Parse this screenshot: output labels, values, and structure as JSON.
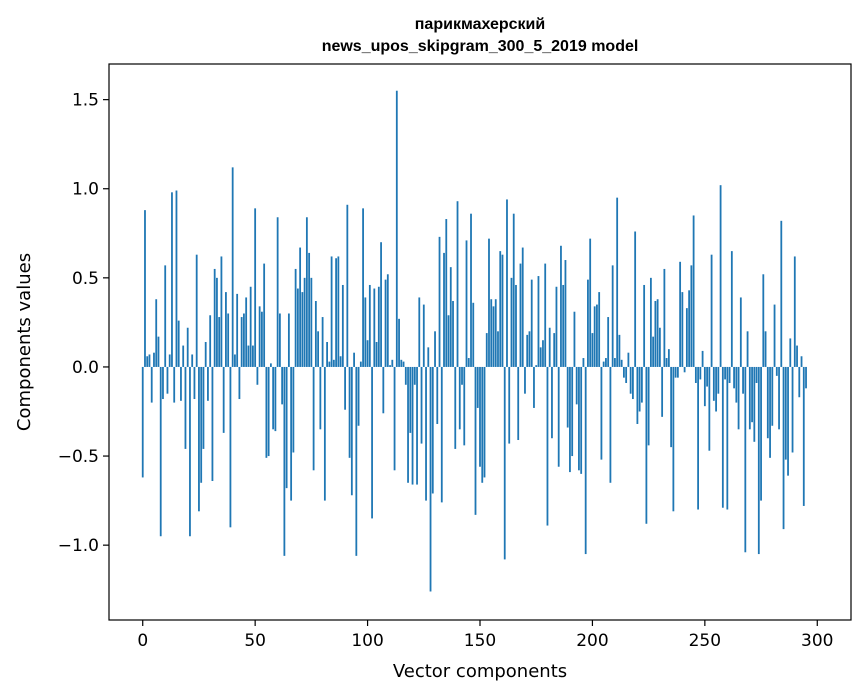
{
  "chart_data": {
    "type": "bar",
    "title": "парикмахерский",
    "subtitle": "news_upos_skipgram_300_5_2019 model",
    "xlabel": "Vector components",
    "ylabel": "Components values",
    "xlim": [
      -15,
      315
    ],
    "ylim": [
      -1.42,
      1.7
    ],
    "xticks": [
      0,
      50,
      100,
      150,
      200,
      250,
      300
    ],
    "yticks": [
      -1.0,
      -0.5,
      0.0,
      0.5,
      1.0,
      1.5
    ],
    "ytick_labels": [
      "−1.0",
      "−0.5",
      "0.0",
      "0.5",
      "1.0",
      "1.5"
    ],
    "bar_color": "#1f77b4",
    "values": [
      -0.62,
      0.88,
      0.06,
      0.07,
      -0.2,
      0.08,
      0.38,
      0.17,
      -0.95,
      -0.18,
      0.57,
      -0.15,
      0.07,
      0.98,
      -0.2,
      0.99,
      0.26,
      -0.19,
      0.12,
      -0.46,
      0.22,
      -0.95,
      0.07,
      -0.18,
      0.63,
      -0.81,
      -0.65,
      -0.46,
      0.14,
      -0.19,
      0.29,
      -0.64,
      0.55,
      0.5,
      0.28,
      0.62,
      -0.37,
      0.42,
      0.3,
      -0.9,
      1.12,
      0.07,
      0.41,
      -0.18,
      0.28,
      0.3,
      0.39,
      0.12,
      0.45,
      0.12,
      0.89,
      -0.1,
      0.34,
      0.31,
      0.58,
      -0.51,
      -0.5,
      0.02,
      -0.35,
      -0.36,
      0.84,
      0.3,
      -0.21,
      -1.06,
      -0.68,
      0.3,
      -0.75,
      -0.48,
      0.55,
      0.44,
      0.67,
      0.42,
      0.5,
      0.84,
      0.64,
      0.5,
      -0.58,
      0.37,
      0.2,
      -0.35,
      0.28,
      -0.75,
      0.14,
      0.03,
      0.62,
      0.04,
      0.61,
      0.62,
      0.06,
      0.46,
      -0.24,
      0.91,
      -0.51,
      -0.72,
      0.08,
      -1.06,
      -0.33,
      0.03,
      0.89,
      0.39,
      0.15,
      0.46,
      -0.85,
      0.44,
      0.14,
      0.45,
      0.7,
      -0.26,
      0.49,
      0.52,
      0.01,
      0.04,
      -0.58,
      1.55,
      0.27,
      0.04,
      0.03,
      -0.1,
      -0.65,
      -0.37,
      -0.66,
      -0.1,
      -0.66,
      0.39,
      -0.43,
      0.35,
      -0.75,
      0.11,
      -1.26,
      -0.71,
      0.2,
      -0.32,
      0.73,
      -0.76,
      0.64,
      0.83,
      0.29,
      0.56,
      0.37,
      -0.46,
      0.93,
      -0.35,
      -0.1,
      -0.44,
      0.71,
      0.05,
      0.86,
      0.36,
      -0.83,
      -0.23,
      -0.56,
      -0.65,
      -0.62,
      0.19,
      0.72,
      0.38,
      0.34,
      0.38,
      0.2,
      0.65,
      0.63,
      -1.08,
      0.94,
      -0.43,
      0.5,
      0.86,
      0.46,
      -0.41,
      0.58,
      0.67,
      -0.15,
      0.18,
      0.2,
      0.49,
      -0.23,
      0.01,
      0.51,
      0.11,
      0.15,
      0.58,
      -0.89,
      0.22,
      -0.4,
      0.19,
      0.45,
      -0.56,
      0.68,
      0.46,
      0.6,
      -0.34,
      -0.59,
      -0.5,
      0.31,
      -0.21,
      -0.58,
      -0.6,
      0.05,
      -1.05,
      0.49,
      0.72,
      0.19,
      0.34,
      0.35,
      0.42,
      -0.52,
      0.03,
      0.05,
      0.28,
      -0.65,
      0.57,
      0.05,
      0.95,
      0.18,
      0.04,
      -0.06,
      -0.09,
      0.08,
      -0.15,
      -0.18,
      0.76,
      -0.32,
      -0.25,
      -0.2,
      0.46,
      -0.88,
      -0.44,
      0.5,
      0.17,
      0.37,
      0.38,
      0.22,
      -0.28,
      0.55,
      0.05,
      0.1,
      -0.45,
      -0.81,
      -0.06,
      -0.06,
      0.59,
      0.42,
      -0.03,
      0.33,
      0.43,
      0.57,
      0.85,
      -0.09,
      -0.8,
      -0.07,
      0.09,
      -0.22,
      -0.11,
      -0.47,
      0.63,
      -0.19,
      -0.25,
      -0.15,
      1.02,
      -0.79,
      -0.07,
      -0.8,
      -0.09,
      0.65,
      -0.12,
      -0.2,
      -0.35,
      0.39,
      -0.15,
      -1.04,
      0.2,
      -0.35,
      -0.31,
      -0.42,
      -0.09,
      -1.05,
      -0.75,
      0.52,
      0.2,
      -0.4,
      -0.51,
      -0.33,
      0.35,
      -0.05,
      -0.35,
      0.82,
      -0.91,
      -0.52,
      -0.61,
      0.16,
      -0.48,
      0.62,
      0.12,
      -0.17,
      0.06,
      -0.78,
      -0.12
    ]
  }
}
